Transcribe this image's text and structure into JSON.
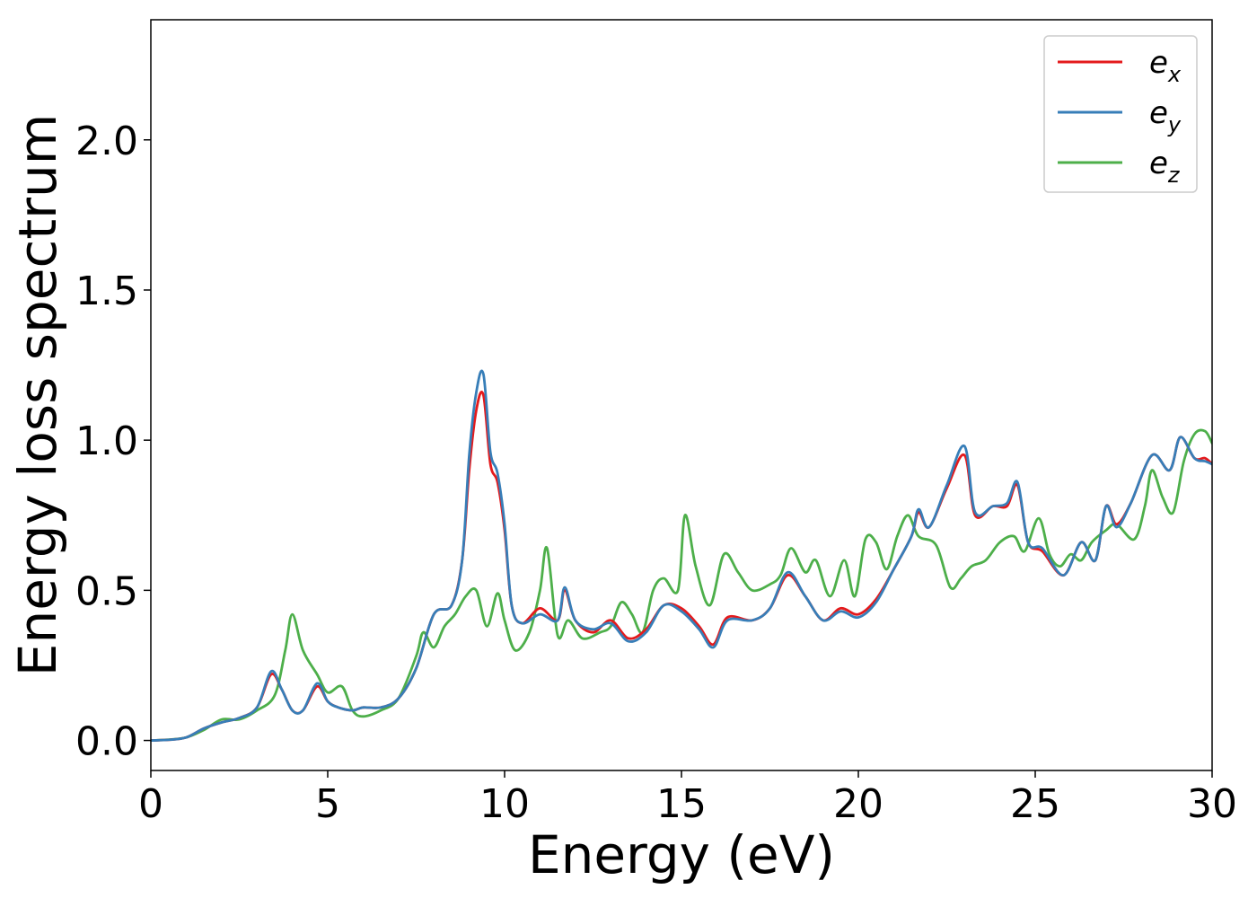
{
  "chart_data": {
    "type": "line",
    "xlabel": "Energy (eV)",
    "ylabel": "Energy loss spectrum",
    "xlim": [
      0,
      30
    ],
    "ylim": [
      -0.1,
      2.4
    ],
    "xticks": [
      0,
      5,
      10,
      15,
      20,
      25,
      30
    ],
    "xtick_labels": [
      "0",
      "5",
      "10",
      "15",
      "20",
      "25",
      "30"
    ],
    "yticks": [
      0.0,
      0.5,
      1.0,
      1.5,
      2.0
    ],
    "ytick_labels": [
      "0.0",
      "0.5",
      "1.0",
      "1.5",
      "2.0"
    ],
    "grid": false,
    "legend_position": "top-right",
    "series": [
      {
        "name": "e_x",
        "label_main": "e",
        "label_sub": "x",
        "color": "#e41a1c",
        "points": [
          [
            0,
            0
          ],
          [
            0.5,
            0.002
          ],
          [
            1.0,
            0.01
          ],
          [
            1.5,
            0.04
          ],
          [
            2.0,
            0.06
          ],
          [
            2.5,
            0.075
          ],
          [
            3.0,
            0.11
          ],
          [
            3.4,
            0.22
          ],
          [
            3.7,
            0.17
          ],
          [
            4.0,
            0.1
          ],
          [
            4.3,
            0.1
          ],
          [
            4.7,
            0.18
          ],
          [
            5.0,
            0.13
          ],
          [
            5.3,
            0.11
          ],
          [
            5.7,
            0.1
          ],
          [
            6.0,
            0.11
          ],
          [
            6.5,
            0.11
          ],
          [
            7.0,
            0.14
          ],
          [
            7.5,
            0.24
          ],
          [
            8.0,
            0.42
          ],
          [
            8.5,
            0.45
          ],
          [
            8.8,
            0.6
          ],
          [
            9.0,
            0.9
          ],
          [
            9.2,
            1.1
          ],
          [
            9.4,
            1.15
          ],
          [
            9.6,
            0.92
          ],
          [
            9.8,
            0.86
          ],
          [
            10.0,
            0.7
          ],
          [
            10.2,
            0.45
          ],
          [
            10.5,
            0.39
          ],
          [
            11.0,
            0.44
          ],
          [
            11.5,
            0.4
          ],
          [
            11.7,
            0.5
          ],
          [
            12.0,
            0.4
          ],
          [
            12.5,
            0.36
          ],
          [
            13.0,
            0.4
          ],
          [
            13.5,
            0.34
          ],
          [
            14.0,
            0.37
          ],
          [
            14.5,
            0.45
          ],
          [
            15.0,
            0.44
          ],
          [
            15.5,
            0.38
          ],
          [
            15.9,
            0.32
          ],
          [
            16.3,
            0.41
          ],
          [
            17.0,
            0.4
          ],
          [
            17.5,
            0.44
          ],
          [
            18.0,
            0.55
          ],
          [
            18.5,
            0.48
          ],
          [
            19.0,
            0.4
          ],
          [
            19.5,
            0.44
          ],
          [
            20.0,
            0.42
          ],
          [
            20.5,
            0.47
          ],
          [
            21.0,
            0.57
          ],
          [
            21.5,
            0.68
          ],
          [
            21.7,
            0.76
          ],
          [
            22.0,
            0.71
          ],
          [
            22.5,
            0.84
          ],
          [
            23.0,
            0.95
          ],
          [
            23.3,
            0.75
          ],
          [
            23.8,
            0.78
          ],
          [
            24.2,
            0.78
          ],
          [
            24.5,
            0.85
          ],
          [
            24.8,
            0.66
          ],
          [
            25.2,
            0.63
          ],
          [
            25.8,
            0.55
          ],
          [
            26.3,
            0.66
          ],
          [
            26.7,
            0.6
          ],
          [
            27.0,
            0.78
          ],
          [
            27.3,
            0.72
          ],
          [
            27.7,
            0.79
          ],
          [
            28.3,
            0.95
          ],
          [
            28.8,
            0.9
          ],
          [
            29.1,
            1.01
          ],
          [
            29.5,
            0.94
          ],
          [
            29.8,
            0.94
          ],
          [
            30.0,
            0.92
          ]
        ]
      },
      {
        "name": "e_y",
        "label_main": "e",
        "label_sub": "y",
        "color": "#377eb8",
        "points": [
          [
            0,
            0
          ],
          [
            0.5,
            0.002
          ],
          [
            1.0,
            0.01
          ],
          [
            1.5,
            0.04
          ],
          [
            2.0,
            0.06
          ],
          [
            2.5,
            0.075
          ],
          [
            3.0,
            0.11
          ],
          [
            3.4,
            0.23
          ],
          [
            3.7,
            0.17
          ],
          [
            4.0,
            0.1
          ],
          [
            4.3,
            0.1
          ],
          [
            4.7,
            0.19
          ],
          [
            5.0,
            0.13
          ],
          [
            5.3,
            0.11
          ],
          [
            5.7,
            0.1
          ],
          [
            6.0,
            0.11
          ],
          [
            6.5,
            0.11
          ],
          [
            7.0,
            0.14
          ],
          [
            7.5,
            0.24
          ],
          [
            8.0,
            0.42
          ],
          [
            8.5,
            0.45
          ],
          [
            8.8,
            0.6
          ],
          [
            9.0,
            0.95
          ],
          [
            9.2,
            1.16
          ],
          [
            9.4,
            1.22
          ],
          [
            9.6,
            0.96
          ],
          [
            9.8,
            0.89
          ],
          [
            10.0,
            0.72
          ],
          [
            10.2,
            0.45
          ],
          [
            10.5,
            0.39
          ],
          [
            11.0,
            0.42
          ],
          [
            11.5,
            0.4
          ],
          [
            11.7,
            0.51
          ],
          [
            12.0,
            0.4
          ],
          [
            12.5,
            0.37
          ],
          [
            13.0,
            0.39
          ],
          [
            13.5,
            0.33
          ],
          [
            14.0,
            0.36
          ],
          [
            14.5,
            0.45
          ],
          [
            15.0,
            0.43
          ],
          [
            15.5,
            0.37
          ],
          [
            15.9,
            0.31
          ],
          [
            16.3,
            0.4
          ],
          [
            17.0,
            0.4
          ],
          [
            17.5,
            0.44
          ],
          [
            18.0,
            0.56
          ],
          [
            18.5,
            0.48
          ],
          [
            19.0,
            0.4
          ],
          [
            19.5,
            0.43
          ],
          [
            20.0,
            0.41
          ],
          [
            20.5,
            0.46
          ],
          [
            21.0,
            0.57
          ],
          [
            21.5,
            0.68
          ],
          [
            21.7,
            0.77
          ],
          [
            22.0,
            0.71
          ],
          [
            22.5,
            0.85
          ],
          [
            23.0,
            0.98
          ],
          [
            23.3,
            0.76
          ],
          [
            23.8,
            0.78
          ],
          [
            24.2,
            0.79
          ],
          [
            24.5,
            0.86
          ],
          [
            24.8,
            0.66
          ],
          [
            25.2,
            0.64
          ],
          [
            25.8,
            0.55
          ],
          [
            26.3,
            0.66
          ],
          [
            26.7,
            0.6
          ],
          [
            27.0,
            0.78
          ],
          [
            27.3,
            0.71
          ],
          [
            27.7,
            0.79
          ],
          [
            28.3,
            0.95
          ],
          [
            28.8,
            0.9
          ],
          [
            29.1,
            1.01
          ],
          [
            29.5,
            0.94
          ],
          [
            29.8,
            0.93
          ],
          [
            30.0,
            0.92
          ]
        ]
      },
      {
        "name": "e_z",
        "label_main": "e",
        "label_sub": "z",
        "color": "#4daf4a",
        "points": [
          [
            0,
            0
          ],
          [
            0.5,
            0.003
          ],
          [
            1.0,
            0.01
          ],
          [
            1.5,
            0.035
          ],
          [
            2.0,
            0.07
          ],
          [
            2.5,
            0.07
          ],
          [
            3.0,
            0.1
          ],
          [
            3.5,
            0.15
          ],
          [
            3.8,
            0.3
          ],
          [
            4.0,
            0.42
          ],
          [
            4.3,
            0.3
          ],
          [
            4.7,
            0.22
          ],
          [
            5.0,
            0.16
          ],
          [
            5.4,
            0.18
          ],
          [
            5.7,
            0.1
          ],
          [
            6.0,
            0.08
          ],
          [
            6.5,
            0.1
          ],
          [
            7.0,
            0.14
          ],
          [
            7.5,
            0.28
          ],
          [
            7.7,
            0.36
          ],
          [
            8.0,
            0.31
          ],
          [
            8.3,
            0.38
          ],
          [
            8.6,
            0.42
          ],
          [
            8.9,
            0.48
          ],
          [
            9.2,
            0.5
          ],
          [
            9.5,
            0.38
          ],
          [
            9.8,
            0.49
          ],
          [
            10.0,
            0.4
          ],
          [
            10.3,
            0.3
          ],
          [
            10.7,
            0.36
          ],
          [
            11.0,
            0.5
          ],
          [
            11.2,
            0.64
          ],
          [
            11.5,
            0.35
          ],
          [
            11.8,
            0.4
          ],
          [
            12.2,
            0.34
          ],
          [
            12.7,
            0.36
          ],
          [
            13.0,
            0.38
          ],
          [
            13.3,
            0.46
          ],
          [
            13.6,
            0.42
          ],
          [
            13.9,
            0.36
          ],
          [
            14.2,
            0.5
          ],
          [
            14.5,
            0.54
          ],
          [
            14.9,
            0.5
          ],
          [
            15.1,
            0.75
          ],
          [
            15.4,
            0.58
          ],
          [
            15.8,
            0.45
          ],
          [
            16.2,
            0.62
          ],
          [
            16.6,
            0.56
          ],
          [
            17.0,
            0.5
          ],
          [
            17.5,
            0.52
          ],
          [
            17.8,
            0.55
          ],
          [
            18.1,
            0.64
          ],
          [
            18.5,
            0.56
          ],
          [
            18.8,
            0.6
          ],
          [
            19.2,
            0.48
          ],
          [
            19.6,
            0.6
          ],
          [
            19.9,
            0.48
          ],
          [
            20.2,
            0.67
          ],
          [
            20.5,
            0.66
          ],
          [
            20.8,
            0.57
          ],
          [
            21.1,
            0.68
          ],
          [
            21.4,
            0.75
          ],
          [
            21.7,
            0.68
          ],
          [
            22.2,
            0.65
          ],
          [
            22.6,
            0.51
          ],
          [
            22.9,
            0.54
          ],
          [
            23.2,
            0.58
          ],
          [
            23.6,
            0.6
          ],
          [
            24.0,
            0.66
          ],
          [
            24.4,
            0.68
          ],
          [
            24.7,
            0.63
          ],
          [
            25.1,
            0.74
          ],
          [
            25.4,
            0.62
          ],
          [
            25.7,
            0.58
          ],
          [
            26.0,
            0.62
          ],
          [
            26.3,
            0.6
          ],
          [
            26.6,
            0.66
          ],
          [
            27.0,
            0.7
          ],
          [
            27.3,
            0.72
          ],
          [
            27.8,
            0.67
          ],
          [
            28.1,
            0.78
          ],
          [
            28.3,
            0.9
          ],
          [
            28.6,
            0.81
          ],
          [
            28.9,
            0.76
          ],
          [
            29.2,
            0.93
          ],
          [
            29.5,
            1.02
          ],
          [
            29.8,
            1.03
          ],
          [
            30.0,
            0.99
          ]
        ]
      }
    ]
  }
}
